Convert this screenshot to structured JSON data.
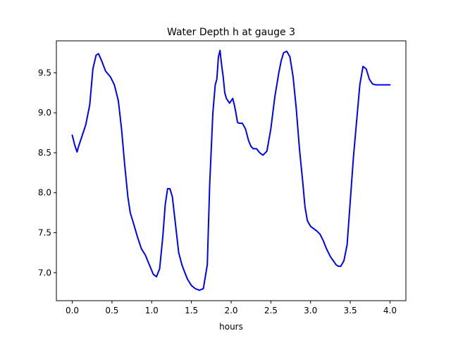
{
  "chart_data": {
    "type": "line",
    "title": "Water Depth h at gauge 3",
    "xlabel": "hours",
    "ylabel": "",
    "xlim": [
      -0.2,
      4.2
    ],
    "ylim": [
      6.65,
      9.9
    ],
    "grid": false,
    "legend": "none",
    "xticks": [
      0.0,
      0.5,
      1.0,
      1.5,
      2.0,
      2.5,
      3.0,
      3.5,
      4.0
    ],
    "xtick_labels": [
      "0.0",
      "0.5",
      "1.0",
      "1.5",
      "2.0",
      "2.5",
      "3.0",
      "3.5",
      "4.0"
    ],
    "yticks": [
      7.0,
      7.5,
      8.0,
      8.5,
      9.0,
      9.5
    ],
    "ytick_labels": [
      "7.0",
      "7.5",
      "8.0",
      "8.5",
      "9.0",
      "9.5"
    ],
    "series": [
      {
        "color": "#0000ff",
        "x": [
          0.0,
          0.03,
          0.06,
          0.08,
          0.12,
          0.17,
          0.22,
          0.26,
          0.3,
          0.33,
          0.37,
          0.42,
          0.48,
          0.53,
          0.58,
          0.62,
          0.66,
          0.7,
          0.73,
          0.77,
          0.82,
          0.87,
          0.92,
          0.97,
          1.02,
          1.06,
          1.1,
          1.14,
          1.17,
          1.2,
          1.23,
          1.26,
          1.3,
          1.34,
          1.38,
          1.41,
          1.45,
          1.5,
          1.55,
          1.6,
          1.65,
          1.7,
          1.73,
          1.77,
          1.8,
          1.82,
          1.84,
          1.86,
          1.88,
          1.9,
          1.92,
          1.94,
          1.96,
          1.98,
          2.0,
          2.02,
          2.04,
          2.06,
          2.08,
          2.1,
          2.14,
          2.18,
          2.22,
          2.25,
          2.28,
          2.32,
          2.36,
          2.4,
          2.45,
          2.5,
          2.55,
          2.6,
          2.63,
          2.66,
          2.7,
          2.74,
          2.78,
          2.82,
          2.86,
          2.9,
          2.93,
          2.96,
          3.0,
          3.04,
          3.08,
          3.12,
          3.16,
          3.2,
          3.25,
          3.3,
          3.32,
          3.35,
          3.38,
          3.42,
          3.46,
          3.5,
          3.54,
          3.58,
          3.62,
          3.66,
          3.7,
          3.74,
          3.78,
          3.82,
          3.85,
          3.88,
          3.91,
          3.94,
          3.97,
          4.0
        ],
        "y": [
          8.72,
          8.6,
          8.51,
          8.58,
          8.7,
          8.85,
          9.1,
          9.55,
          9.72,
          9.74,
          9.65,
          9.52,
          9.45,
          9.35,
          9.15,
          8.8,
          8.35,
          7.95,
          7.75,
          7.62,
          7.45,
          7.3,
          7.22,
          7.1,
          6.98,
          6.95,
          7.05,
          7.45,
          7.85,
          8.05,
          8.05,
          7.95,
          7.6,
          7.25,
          7.1,
          7.02,
          6.92,
          6.84,
          6.8,
          6.78,
          6.8,
          7.1,
          8.1,
          9.0,
          9.35,
          9.42,
          9.7,
          9.78,
          9.6,
          9.45,
          9.25,
          9.18,
          9.15,
          9.12,
          9.15,
          9.18,
          9.1,
          9.0,
          8.88,
          8.87,
          8.87,
          8.8,
          8.65,
          8.58,
          8.55,
          8.55,
          8.5,
          8.47,
          8.52,
          8.8,
          9.2,
          9.5,
          9.65,
          9.75,
          9.77,
          9.7,
          9.45,
          9.05,
          8.55,
          8.15,
          7.82,
          7.65,
          7.58,
          7.55,
          7.52,
          7.48,
          7.4,
          7.3,
          7.2,
          7.13,
          7.1,
          7.08,
          7.08,
          7.15,
          7.35,
          7.9,
          8.45,
          8.9,
          9.35,
          9.58,
          9.55,
          9.42,
          9.36,
          9.35,
          9.35,
          9.35,
          9.35,
          9.35,
          9.35,
          9.35
        ]
      }
    ]
  }
}
